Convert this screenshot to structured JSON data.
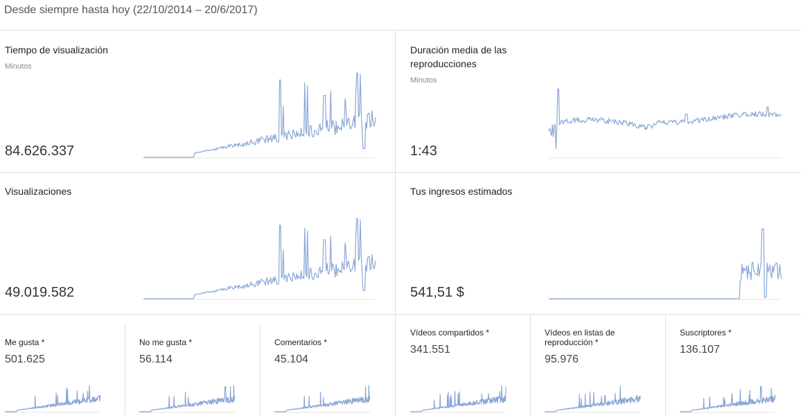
{
  "range_label": "Desde siempre hasta hoy (22/10/2014 – 20/6/2017)",
  "colors": {
    "line": "#89a6d6",
    "divider": "#e0e0e0"
  },
  "cards": {
    "watch_time": {
      "title": "Tiempo de visualización",
      "unit": "Minutos",
      "value": "84.626.337"
    },
    "avg_duration": {
      "title": "Duración media de las reproducciones",
      "unit": "Minutos",
      "value": "1:43"
    },
    "views": {
      "title": "Visualizaciones",
      "value": "49.019.582"
    },
    "revenue": {
      "title": "Tus ingresos estimados",
      "value": "541,51 $"
    }
  },
  "small": {
    "likes": {
      "title": "Me gusta *",
      "value": "501.625"
    },
    "dislikes": {
      "title": "No me gusta *",
      "value": "56.114"
    },
    "comments": {
      "title": "Comentarios *",
      "value": "45.104"
    },
    "shares": {
      "title": "Vídeos compartidos *",
      "value": "341.551"
    },
    "playlists": {
      "title": "Vídeos en listas de reproducción *",
      "value": "95.976"
    },
    "subscribers": {
      "title": "Suscriptores *",
      "value": "136.107"
    }
  }
}
